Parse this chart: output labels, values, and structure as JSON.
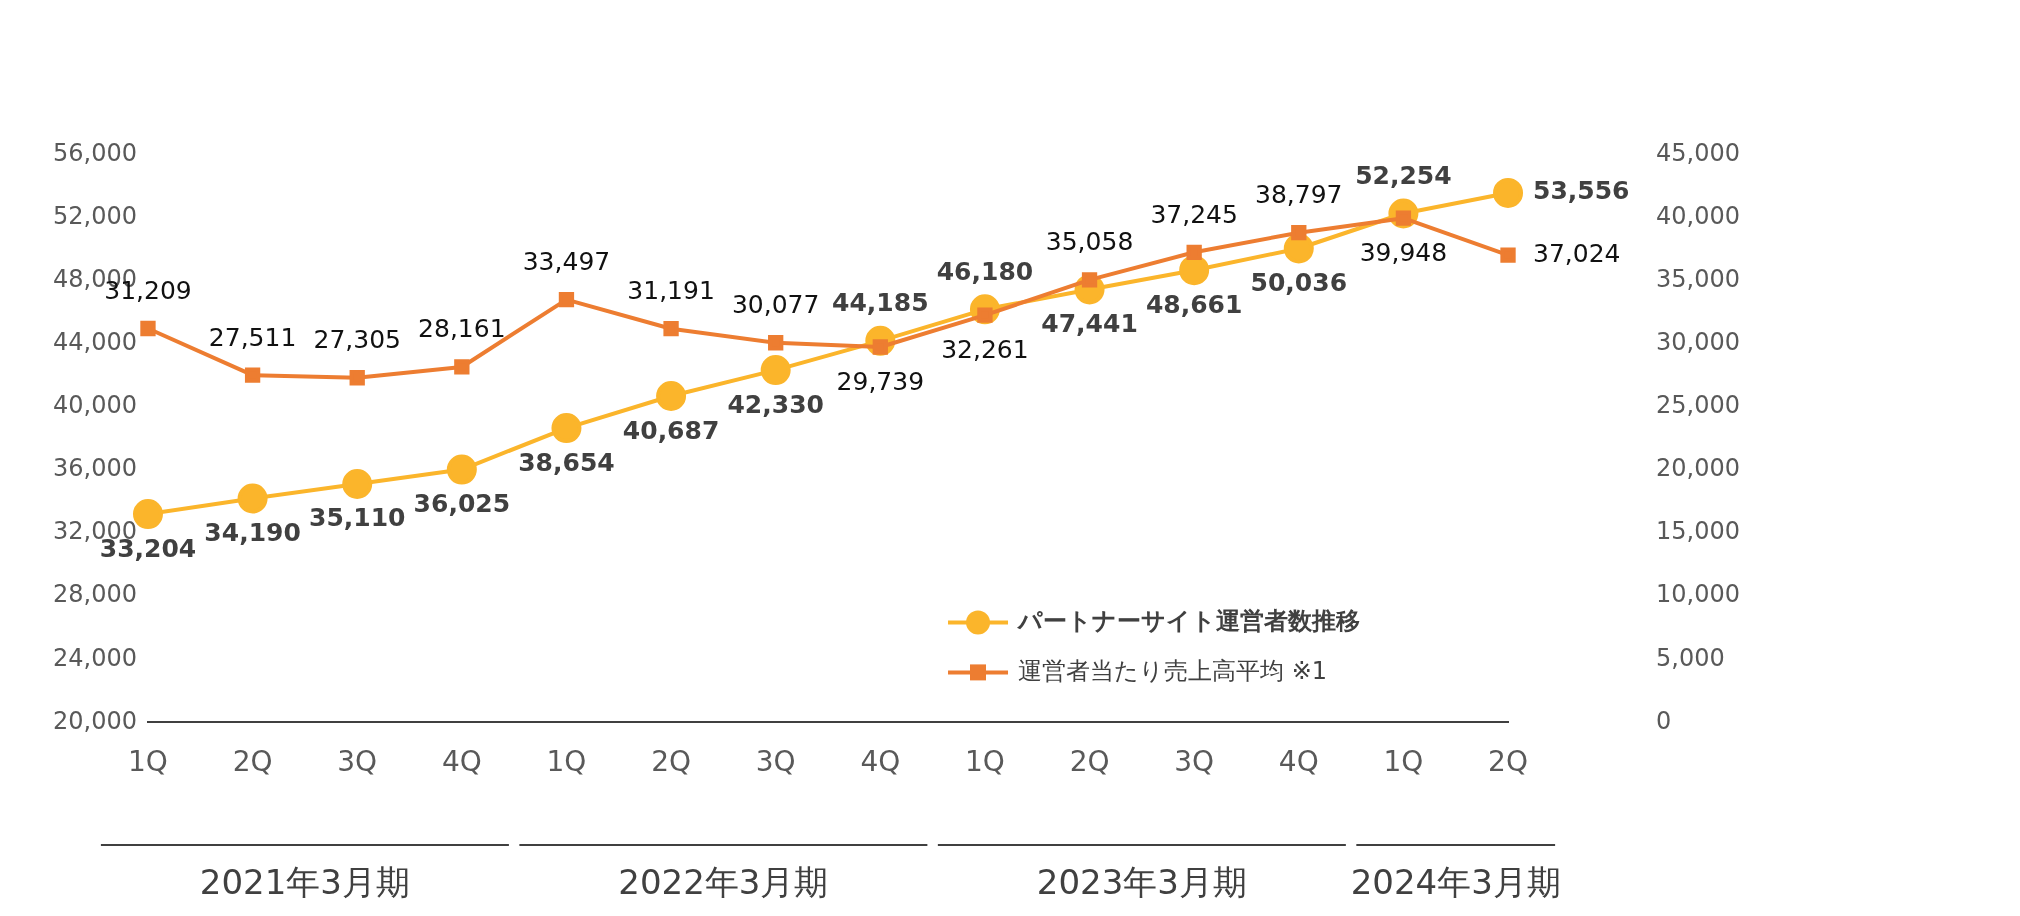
{
  "chart_data": {
    "type": "line",
    "categories": [
      "1Q",
      "2Q",
      "3Q",
      "4Q",
      "1Q",
      "2Q",
      "3Q",
      "4Q",
      "1Q",
      "2Q",
      "3Q",
      "4Q",
      "1Q",
      "2Q"
    ],
    "series": [
      {
        "name": "パートナーサイト運営者数推移",
        "color": "#fbb52b",
        "marker": "circle",
        "values": [
          33204,
          34190,
          35110,
          36025,
          38654,
          40687,
          42330,
          44185,
          46180,
          47441,
          48661,
          50036,
          52254,
          53556
        ],
        "value_labels": [
          "33,204",
          "34,190",
          "35,110",
          "36,025",
          "38,654",
          "40,687",
          "42,330",
          "44,185",
          "46,180",
          "47,441",
          "48,661",
          "50,036",
          "52,254",
          "53,556"
        ]
      },
      {
        "name": "運営者当たり売上高平均 ※1",
        "color": "#ed7d31",
        "marker": "square",
        "axis": "y2",
        "values": [
          31209,
          27511,
          27305,
          28161,
          33497,
          31191,
          30077,
          29739,
          32261,
          35058,
          37245,
          38797,
          39948,
          37024
        ],
        "value_labels": [
          "31,209",
          "27,511",
          "27,305",
          "28,161",
          "33,497",
          "31,191",
          "30,077",
          "29,739",
          "32,261",
          "35,058",
          "37,245",
          "38,797",
          "39,948",
          "37,024"
        ]
      }
    ],
    "ylim": [
      20000,
      56000
    ],
    "yticks": [
      {
        "value": 20000,
        "label": "20,000"
      },
      {
        "value": 24000,
        "label": "24,000"
      },
      {
        "value": 28000,
        "label": "28,000"
      },
      {
        "value": 32000,
        "label": "32,000"
      },
      {
        "value": 36000,
        "label": "36,000"
      },
      {
        "value": 40000,
        "label": "40,000"
      },
      {
        "value": 44000,
        "label": "44,000"
      },
      {
        "value": 48000,
        "label": "48,000"
      },
      {
        "value": 52000,
        "label": "52,000"
      },
      {
        "value": 56000,
        "label": "56,000"
      }
    ],
    "y2lim": [
      0,
      45000
    ],
    "y2ticks": [
      0,
      {
        "value": 5000,
        "label": "5,000"
      },
      {
        "value": 10000,
        "label": "10,000"
      },
      {
        "value": 15000,
        "label": "15,000"
      },
      {
        "value": 20000,
        "label": "20,000"
      },
      {
        "value": 25000,
        "label": "25,000"
      },
      {
        "value": 30000,
        "label": "30,000"
      },
      {
        "value": 35000,
        "label": "35,000"
      },
      {
        "value": 40000,
        "label": "40,000"
      },
      {
        "value": 45000,
        "label": "45,000"
      }
    ],
    "grid": false,
    "legend": "bottom right",
    "annotations": [
      "2021年3月期",
      "2022年3月期",
      "2023年3月期",
      "2024年3月期"
    ]
  }
}
